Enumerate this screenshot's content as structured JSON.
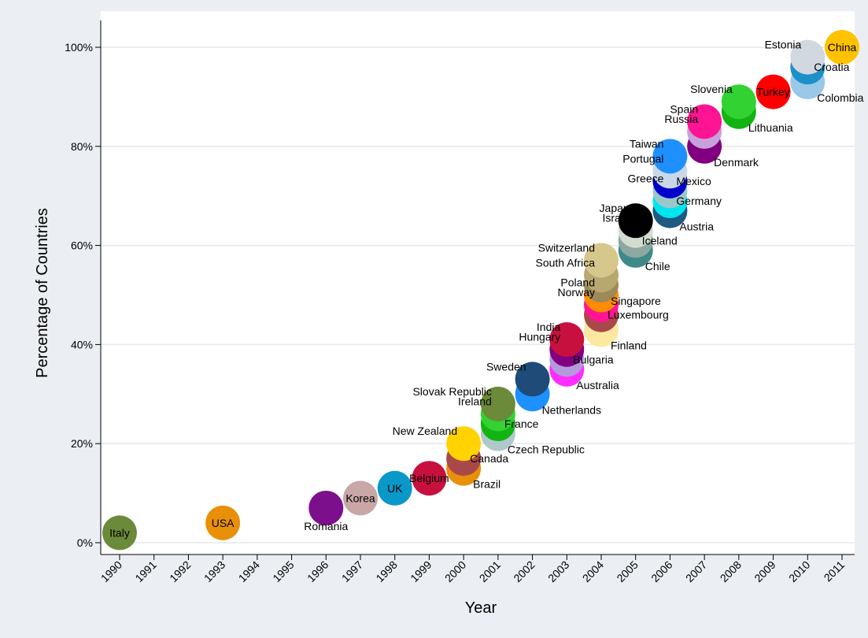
{
  "chart_data": {
    "type": "scatter",
    "title": "",
    "xlabel": "Year",
    "ylabel": "Percentage of Countries",
    "xlim": [
      1990,
      2011
    ],
    "ylim": [
      0,
      100
    ],
    "x_ticks": [
      "1990",
      "1991",
      "1992",
      "1993",
      "1994",
      "1995",
      "1996",
      "1997",
      "1998",
      "1999",
      "2000",
      "2001",
      "2002",
      "2003",
      "2004",
      "2005",
      "2006",
      "2007",
      "2008",
      "2009",
      "2010",
      "2011"
    ],
    "y_ticks": [
      "0%",
      "20%",
      "40%",
      "60%",
      "80%",
      "100%"
    ],
    "y_tick_values": [
      0,
      20,
      40,
      60,
      80,
      100
    ],
    "grid": true,
    "legend": "none",
    "points": [
      {
        "label": "Italy",
        "x": 1990,
        "y": 2,
        "color": "#6b8a3a",
        "label_pos": "center"
      },
      {
        "label": "USA",
        "x": 1993,
        "y": 4,
        "color": "#e8900a",
        "label_pos": "center"
      },
      {
        "label": "Romania",
        "x": 1996,
        "y": 7,
        "color": "#7c0f8c",
        "label_pos": "below"
      },
      {
        "label": "Korea",
        "x": 1997,
        "y": 9,
        "color": "#c9a7a7",
        "label_pos": "center"
      },
      {
        "label": "UK",
        "x": 1998,
        "y": 11,
        "color": "#0a98c9",
        "label_pos": "center"
      },
      {
        "label": "Belgium",
        "x": 1999,
        "y": 13,
        "color": "#c8103e",
        "label_pos": "center"
      },
      {
        "label": "Brazil",
        "x": 2000,
        "y": 15,
        "color": "#e8900a",
        "label_pos": "below-right"
      },
      {
        "label": "Canada",
        "x": 2000,
        "y": 17,
        "color": "#a84848",
        "label_pos": "right"
      },
      {
        "label": "New Zealand",
        "x": 2000,
        "y": 20,
        "color": "#ffd200",
        "label_pos": "above-left"
      },
      {
        "label": "Czech Republic",
        "x": 2001,
        "y": 22,
        "color": "#b0c8cc",
        "label_pos": "below-right"
      },
      {
        "label": "France",
        "x": 2001,
        "y": 24,
        "color": "#12b412",
        "label_pos": "right"
      },
      {
        "label": "Ireland",
        "x": 2001,
        "y": 26,
        "color": "#32d232",
        "label_pos": "above-left"
      },
      {
        "label": "Slovak Republic",
        "x": 2001,
        "y": 28,
        "color": "#6b8a3a",
        "label_pos": "above-left"
      },
      {
        "label": "Netherlands",
        "x": 2002,
        "y": 30,
        "color": "#1e90ff",
        "label_pos": "below-right"
      },
      {
        "label": "Sweden",
        "x": 2002,
        "y": 33,
        "color": "#1e4b78",
        "label_pos": "above-left"
      },
      {
        "label": "Australia",
        "x": 2003,
        "y": 35,
        "color": "#ff2dff",
        "label_pos": "below-right"
      },
      {
        "label": "Bulgaria",
        "x": 2003,
        "y": 37,
        "color": "#b49adc",
        "label_pos": "right"
      },
      {
        "label": "Hungary",
        "x": 2003,
        "y": 39,
        "color": "#800080",
        "label_pos": "above-left"
      },
      {
        "label": "India",
        "x": 2003,
        "y": 41,
        "color": "#c8103e",
        "label_pos": "above-left"
      },
      {
        "label": "Finland",
        "x": 2004,
        "y": 43,
        "color": "#fde8a0",
        "label_pos": "below-right"
      },
      {
        "label": "Luxembourg",
        "x": 2004,
        "y": 46,
        "color": "#a84848",
        "label_pos": "right"
      },
      {
        "label": "Norway",
        "x": 2004,
        "y": 48,
        "color": "#ff1493",
        "label_pos": "above-left"
      },
      {
        "label": "Poland",
        "x": 2004,
        "y": 50,
        "color": "#ff8c00",
        "label_pos": "above-left"
      },
      {
        "label": "Singapore",
        "x": 2004,
        "y": 52,
        "color": "#9c8a5a",
        "label_pos": "below-right"
      },
      {
        "label": "South Africa",
        "x": 2004,
        "y": 54,
        "color": "#b8a870",
        "label_pos": "above-left"
      },
      {
        "label": "Switzerland",
        "x": 2004,
        "y": 57,
        "color": "#d6c88c",
        "label_pos": "above-left"
      },
      {
        "label": "Chile",
        "x": 2005,
        "y": 59,
        "color": "#3e8a8a",
        "label_pos": "below-right"
      },
      {
        "label": "Iceland",
        "x": 2005,
        "y": 61,
        "color": "#8ca8a0",
        "label_pos": "right"
      },
      {
        "label": "Israel",
        "x": 2005,
        "y": 63,
        "color": "#d2dccf",
        "label_pos": "above-left"
      },
      {
        "label": "Japan",
        "x": 2005,
        "y": 65,
        "color": "#000000",
        "label_pos": "above-left"
      },
      {
        "label": "Austria",
        "x": 2006,
        "y": 67,
        "color": "#1e5a82",
        "label_pos": "below-right"
      },
      {
        "label": "Germany",
        "x": 2006,
        "y": 69,
        "color": "#00e5ee",
        "label_pos": "right"
      },
      {
        "label": "Greece",
        "x": 2006,
        "y": 71,
        "color": "#9ac8c8",
        "label_pos": "above-left"
      },
      {
        "label": "Mexico",
        "x": 2006,
        "y": 73,
        "color": "#0000cd",
        "label_pos": "right"
      },
      {
        "label": "Portugal",
        "x": 2006,
        "y": 75,
        "color": "#c8d8e8",
        "label_pos": "above-left"
      },
      {
        "label": "Taiwan",
        "x": 2006,
        "y": 78,
        "color": "#1e90ff",
        "label_pos": "above-left"
      },
      {
        "label": "Denmark",
        "x": 2007,
        "y": 80,
        "color": "#800080",
        "label_pos": "below-right"
      },
      {
        "label": "Russia",
        "x": 2007,
        "y": 83,
        "color": "#c8a0dc",
        "label_pos": "above-left"
      },
      {
        "label": "Spain",
        "x": 2007,
        "y": 85,
        "color": "#ff1493",
        "label_pos": "above-left"
      },
      {
        "label": "Lithuania",
        "x": 2008,
        "y": 87,
        "color": "#12b412",
        "label_pos": "below-right"
      },
      {
        "label": "Slovenia",
        "x": 2008,
        "y": 89,
        "color": "#32d232",
        "label_pos": "above-left"
      },
      {
        "label": "Turkey",
        "x": 2009,
        "y": 91,
        "color": "#ff0000",
        "label_pos": "center"
      },
      {
        "label": "Colombia",
        "x": 2010,
        "y": 93,
        "color": "#9ac8e8",
        "label_pos": "below-right"
      },
      {
        "label": "Croatia",
        "x": 2010,
        "y": 96,
        "color": "#1e90c8",
        "label_pos": "right"
      },
      {
        "label": "Estonia",
        "x": 2010,
        "y": 98,
        "color": "#d2d8e0",
        "label_pos": "above-left"
      },
      {
        "label": "China",
        "x": 2011,
        "y": 100,
        "color": "#ffc200",
        "label_pos": "center"
      }
    ]
  },
  "colors": {
    "page_background": "#ebeef2",
    "plot_background": "#ffffff",
    "gridline": "#e4e8ee",
    "axis": "#000000"
  }
}
